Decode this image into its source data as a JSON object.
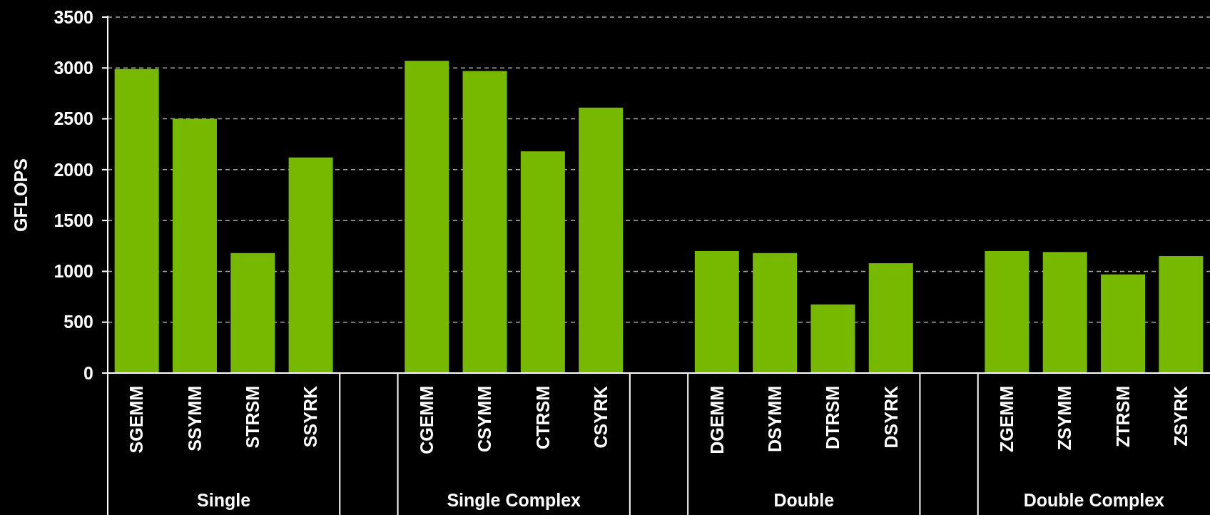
{
  "chart_data": {
    "type": "bar",
    "ylabel": "GFLOPS",
    "categories": [
      "SGEMM",
      "SSYMM",
      "STRSM",
      "SSYRK",
      null,
      "CGEMM",
      "CSYMM",
      "CTRSM",
      "CSYRK",
      null,
      "DGEMM",
      "DSYMM",
      "DTRSM",
      "DSYRK",
      null,
      "ZGEMM",
      "ZSYMM",
      "ZTRSM",
      "ZSYRK"
    ],
    "values": [
      2990,
      2500,
      1180,
      2120,
      null,
      3070,
      2970,
      2180,
      2610,
      null,
      1200,
      1180,
      675,
      1080,
      null,
      1200,
      1190,
      970,
      1150
    ],
    "color": "#76b900",
    "ylim": [
      0,
      3500
    ],
    "yticks": [
      0,
      500,
      1000,
      1500,
      2000,
      2500,
      3000,
      3500
    ],
    "grid": "y",
    "annotations": [
      "Single",
      "Single Complex",
      "Double",
      "Double Complex"
    ]
  }
}
